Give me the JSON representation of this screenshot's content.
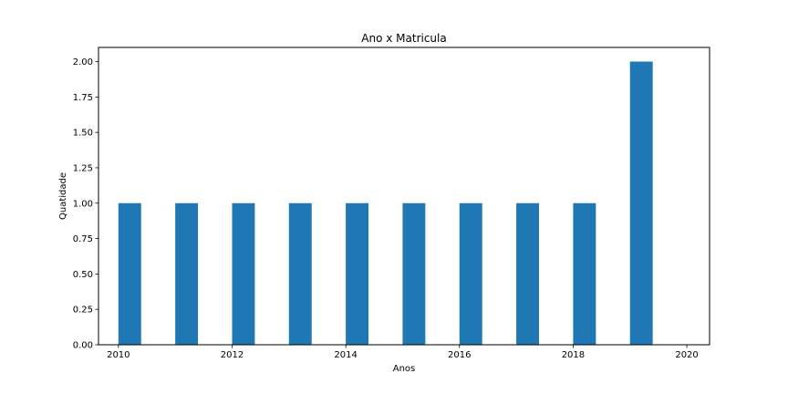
{
  "chart_data": {
    "type": "bar",
    "title": "Ano x Matricula",
    "xlabel": "Anos",
    "ylabel": "Quatidade",
    "x": [
      2010.2,
      2011.2,
      2012.2,
      2013.2,
      2014.2,
      2015.2,
      2016.2,
      2017.2,
      2018.2,
      2019.2
    ],
    "values": [
      1,
      1,
      1,
      1,
      1,
      1,
      1,
      1,
      1,
      2
    ],
    "bar_width": 0.4,
    "xlim": [
      2009.65,
      2020.4
    ],
    "ylim": [
      0,
      2.1
    ],
    "xticks": [
      2010,
      2012,
      2014,
      2016,
      2018,
      2020
    ],
    "xtick_labels": [
      "2010",
      "2012",
      "2014",
      "2016",
      "2018",
      "2020"
    ],
    "yticks": [
      0,
      0.25,
      0.5,
      0.75,
      1.0,
      1.25,
      1.5,
      1.75,
      2.0
    ],
    "ytick_labels": [
      "0.00",
      "0.25",
      "0.50",
      "0.75",
      "1.00",
      "1.25",
      "1.50",
      "1.75",
      "2.00"
    ],
    "color": "#1f77b4",
    "grid": false,
    "legend": false
  }
}
